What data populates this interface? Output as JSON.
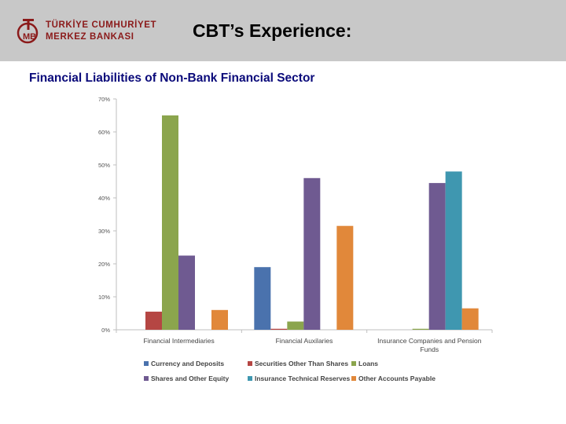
{
  "header": {
    "logo_line1": "TÜRKİYE CUMHURİYET",
    "logo_line2": "MERKEZ BANKASI",
    "title": "CBT’s Experience:"
  },
  "subtitle": "Financial Liabilities of Non-Bank Financial Sector",
  "colors": {
    "header_bg": "#c8c8c8",
    "logo_red": "#8b1a1a",
    "subtitle_blue": "#0a0a7a"
  },
  "chart_data": {
    "type": "bar",
    "categories": [
      "Financial Intermediaries",
      "Financial Auxilaries",
      "Insurance Companies and Pension Funds"
    ],
    "category_lines": [
      [
        "Financial Intermediaries"
      ],
      [
        "Financial Auxilaries"
      ],
      [
        "Insurance Companies and Pension",
        "Funds"
      ]
    ],
    "ylim": [
      0,
      70
    ],
    "yticks": [
      0,
      10,
      20,
      30,
      40,
      50,
      60,
      70
    ],
    "ytick_labels": [
      "0%",
      "10%",
      "20%",
      "30%",
      "40%",
      "50%",
      "60%",
      "70%"
    ],
    "grid": false,
    "legend_position": "bottom",
    "series": [
      {
        "name": "Currency and Deposits",
        "color": "#4a72ad",
        "values": [
          0,
          19,
          0
        ]
      },
      {
        "name": "Securities Other Than Shares",
        "color": "#b54643",
        "values": [
          5.5,
          0.3,
          0
        ]
      },
      {
        "name": "Loans",
        "color": "#8ba54d",
        "values": [
          65,
          2.5,
          0.3
        ]
      },
      {
        "name": "Shares and Other Equity",
        "color": "#6f5a91",
        "values": [
          22.5,
          46,
          44.5
        ]
      },
      {
        "name": "Insurance Technical Reserves",
        "color": "#3f97b0",
        "values": [
          0,
          0,
          48
        ]
      },
      {
        "name": "Other Accounts Payable",
        "color": "#e1883a",
        "values": [
          6,
          31.5,
          6.5
        ]
      }
    ]
  }
}
